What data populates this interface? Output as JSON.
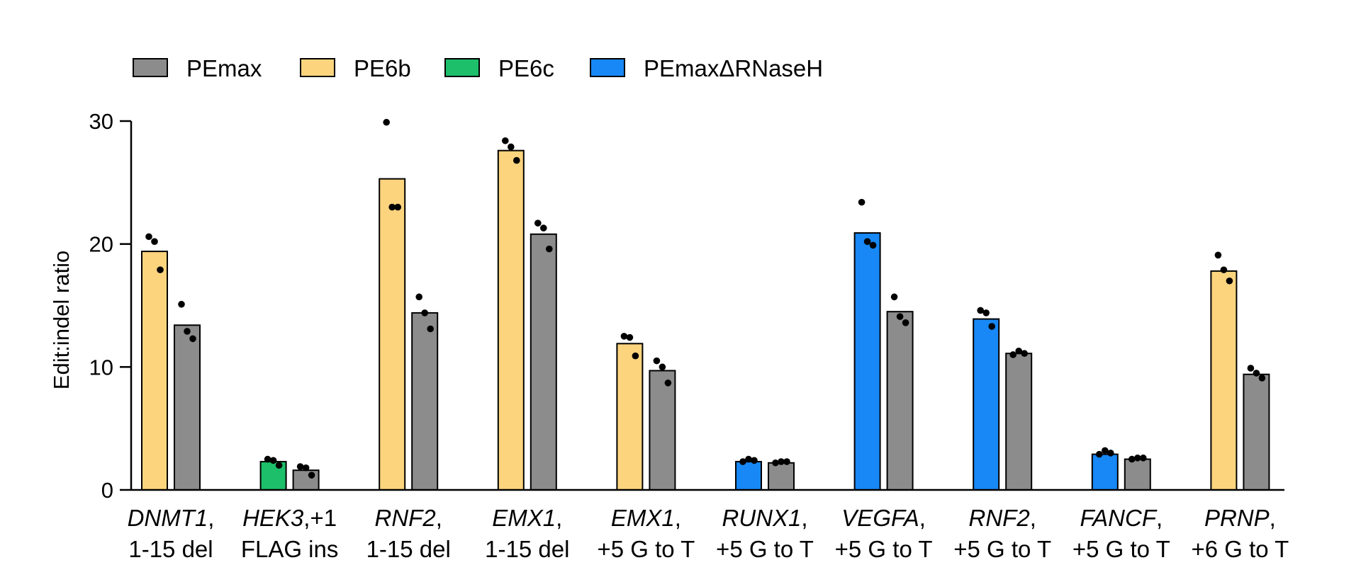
{
  "chart_data": {
    "type": "bar",
    "title": "",
    "xlabel": "",
    "ylabel": "Edit:indel ratio",
    "ylim": [
      0,
      30
    ],
    "yticks": [
      0,
      10,
      20,
      30
    ],
    "legend_position": "top-left",
    "series_meta": [
      {
        "key": "PEmax",
        "name": "PEmax",
        "color": "#8c8c8c"
      },
      {
        "key": "PE6b",
        "name": "PE6b",
        "color": "#fdd47e"
      },
      {
        "key": "PE6c",
        "name": "PE6c",
        "color": "#1dbf6a"
      },
      {
        "key": "PEmaxdRH",
        "name": "PEmaxΔRNaseH",
        "color": "#1788f5"
      }
    ],
    "categories": [
      {
        "gene": "DNMT1",
        "edit_line1": ",",
        "line2": "1-15 del"
      },
      {
        "gene": "HEK3",
        "edit_line1": ",+1",
        "line2": "FLAG ins"
      },
      {
        "gene": "RNF2",
        "edit_line1": ",",
        "line2": "1-15 del"
      },
      {
        "gene": "EMX1",
        "edit_line1": ",",
        "line2": "1-15 del"
      },
      {
        "gene": "EMX1",
        "edit_line1": ",",
        "line2": "+5 G to T"
      },
      {
        "gene": "RUNX1",
        "edit_line1": ",",
        "line2": "+5 G to T"
      },
      {
        "gene": "VEGFA",
        "edit_line1": ",",
        "line2": "+5 G to T"
      },
      {
        "gene": "RNF2",
        "edit_line1": ",",
        "line2": "+5 G to T"
      },
      {
        "gene": "FANCF",
        "edit_line1": ",",
        "line2": "+5 G to T"
      },
      {
        "gene": "PRNP",
        "edit_line1": ",",
        "line2": "+6 G to T"
      }
    ],
    "groups": [
      {
        "bars": [
          {
            "series": "PE6b",
            "value": 19.4,
            "points": [
              20.6,
              20.2,
              17.9
            ]
          },
          {
            "series": "PEmax",
            "value": 13.4,
            "points": [
              15.1,
              12.9,
              12.3
            ]
          }
        ]
      },
      {
        "bars": [
          {
            "series": "PE6c",
            "value": 2.3,
            "points": [
              2.5,
              2.4,
              2.0
            ]
          },
          {
            "series": "PEmax",
            "value": 1.6,
            "points": [
              1.9,
              1.8,
              1.2
            ]
          }
        ]
      },
      {
        "bars": [
          {
            "series": "PE6b",
            "value": 25.3,
            "points": [
              29.9,
              23.0,
              23.0
            ]
          },
          {
            "series": "PEmax",
            "value": 14.4,
            "points": [
              15.7,
              14.4,
              13.1
            ]
          }
        ]
      },
      {
        "bars": [
          {
            "series": "PE6b",
            "value": 27.6,
            "points": [
              28.4,
              27.9,
              26.8
            ]
          },
          {
            "series": "PEmax",
            "value": 20.8,
            "points": [
              21.7,
              21.3,
              19.6
            ]
          }
        ]
      },
      {
        "bars": [
          {
            "series": "PE6b",
            "value": 11.9,
            "points": [
              12.5,
              12.4,
              10.9
            ]
          },
          {
            "series": "PEmax",
            "value": 9.7,
            "points": [
              10.5,
              10.0,
              8.7
            ]
          }
        ]
      },
      {
        "bars": [
          {
            "series": "PEmaxdRH",
            "value": 2.3,
            "points": [
              2.3,
              2.5,
              2.4
            ]
          },
          {
            "series": "PEmax",
            "value": 2.2,
            "points": [
              2.2,
              2.3,
              2.3
            ]
          }
        ]
      },
      {
        "bars": [
          {
            "series": "PEmaxdRH",
            "value": 20.9,
            "points": [
              23.4,
              20.2,
              19.9
            ]
          },
          {
            "series": "PEmax",
            "value": 14.5,
            "points": [
              15.7,
              14.1,
              13.6
            ]
          }
        ]
      },
      {
        "bars": [
          {
            "series": "PEmaxdRH",
            "value": 13.9,
            "points": [
              14.6,
              14.4,
              13.3
            ]
          },
          {
            "series": "PEmax",
            "value": 11.1,
            "points": [
              11.0,
              11.3,
              11.1
            ]
          }
        ]
      },
      {
        "bars": [
          {
            "series": "PEmaxdRH",
            "value": 2.9,
            "points": [
              2.9,
              3.2,
              3.0
            ]
          },
          {
            "series": "PEmax",
            "value": 2.5,
            "points": [
              2.5,
              2.6,
              2.6
            ]
          }
        ]
      },
      {
        "bars": [
          {
            "series": "PE6b",
            "value": 17.8,
            "points": [
              19.1,
              17.9,
              17.0
            ]
          },
          {
            "series": "PEmax",
            "value": 9.4,
            "points": [
              9.9,
              9.5,
              9.1
            ]
          }
        ]
      }
    ]
  }
}
